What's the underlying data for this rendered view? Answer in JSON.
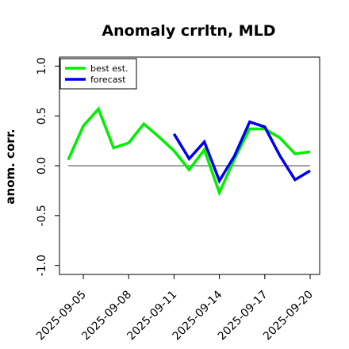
{
  "chart_data": {
    "type": "line",
    "title": "Anomaly crrltn, MLD",
    "xlabel": "",
    "ylabel": "anom. corr.",
    "ylim": [
      -1.0,
      1.0
    ],
    "yticks": [
      "1.0",
      "0.5",
      "0.0",
      "-0.5",
      "-1.0"
    ],
    "yticks_values": [
      1.0,
      0.5,
      0.0,
      -0.5,
      -1.0
    ],
    "x": [
      "2025-09-04",
      "2025-09-05",
      "2025-09-06",
      "2025-09-07",
      "2025-09-08",
      "2025-09-09",
      "2025-09-10",
      "2025-09-11",
      "2025-09-12",
      "2025-09-13",
      "2025-09-14",
      "2025-09-15",
      "2025-09-16",
      "2025-09-17",
      "2025-09-18",
      "2025-09-19",
      "2025-09-20"
    ],
    "xticks": [
      "2025-09-05",
      "2025-09-08",
      "2025-09-11",
      "2025-09-14",
      "2025-09-17",
      "2025-09-20"
    ],
    "xtick_colors": [
      "#000000",
      "#000000",
      "#228b22",
      "#000000",
      "#000000",
      "#000000"
    ],
    "zero_line": 0.0,
    "grid": false,
    "legend_position": "top-left",
    "series": [
      {
        "name": "best est.",
        "color": "#00ee00",
        "values": [
          0.06,
          0.4,
          0.57,
          0.18,
          0.23,
          0.42,
          0.29,
          0.15,
          -0.04,
          0.16,
          -0.27,
          0.07,
          0.37,
          0.37,
          0.28,
          0.12,
          0.14
        ]
      },
      {
        "name": "forecast",
        "color": "#0000ee",
        "values": [
          null,
          null,
          null,
          null,
          null,
          null,
          null,
          0.32,
          0.07,
          0.24,
          -0.15,
          0.1,
          0.44,
          0.39,
          0.1,
          -0.14,
          -0.05
        ]
      }
    ]
  }
}
